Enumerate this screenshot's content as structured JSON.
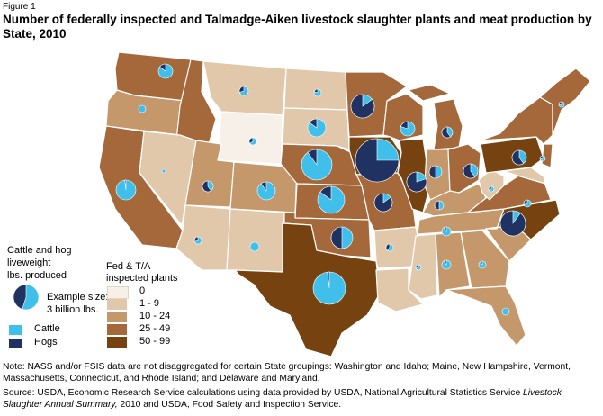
{
  "figure_label": "Figure 1",
  "title": "Number of federally inspected and Talmadge-Aiken livestock slaughter plants and meat production by State, 2010",
  "legend_production": {
    "title": "Cattle and hog liveweight lbs. produced",
    "title_line1": "Cattle and hog",
    "title_line2": "liveweight",
    "title_line3": "lbs. produced",
    "example_line1": "Example size:",
    "example_line2": "3 billion lbs.",
    "cattle_label": "Cattle",
    "hogs_label": "Hogs",
    "cattle_color": "#3fbfea",
    "hogs_color": "#1f3262"
  },
  "legend_plants": {
    "title_line1": "Fed & T/A",
    "title_line2": "inspected plants",
    "bins": [
      {
        "label": "0",
        "color": "#f7f0e8"
      },
      {
        "label": "1 - 9",
        "color": "#e2c8ab"
      },
      {
        "label": "10 - 24",
        "color": "#c5986b"
      },
      {
        "label": "25 - 49",
        "color": "#a4683a"
      },
      {
        "label": "50 - 99",
        "color": "#76420f"
      }
    ]
  },
  "note": "Note: NASS and/or FSIS data are not disaggregated for certain State groupings: Washington and Idaho; Maine, New Hampshire, Vermont, Massachusetts, Connecticut, and Rhode Island; and Delaware and Maryland.",
  "source_prefix": "Source: USDA, Economic Research Service calculations using data provided by USDA, National Agricultural Statistics Service ",
  "source_italic": "Livestock Slaughter Annual Summary,",
  "source_suffix": " 2010 and USDA, Food Safety and Inspection Service."
}
